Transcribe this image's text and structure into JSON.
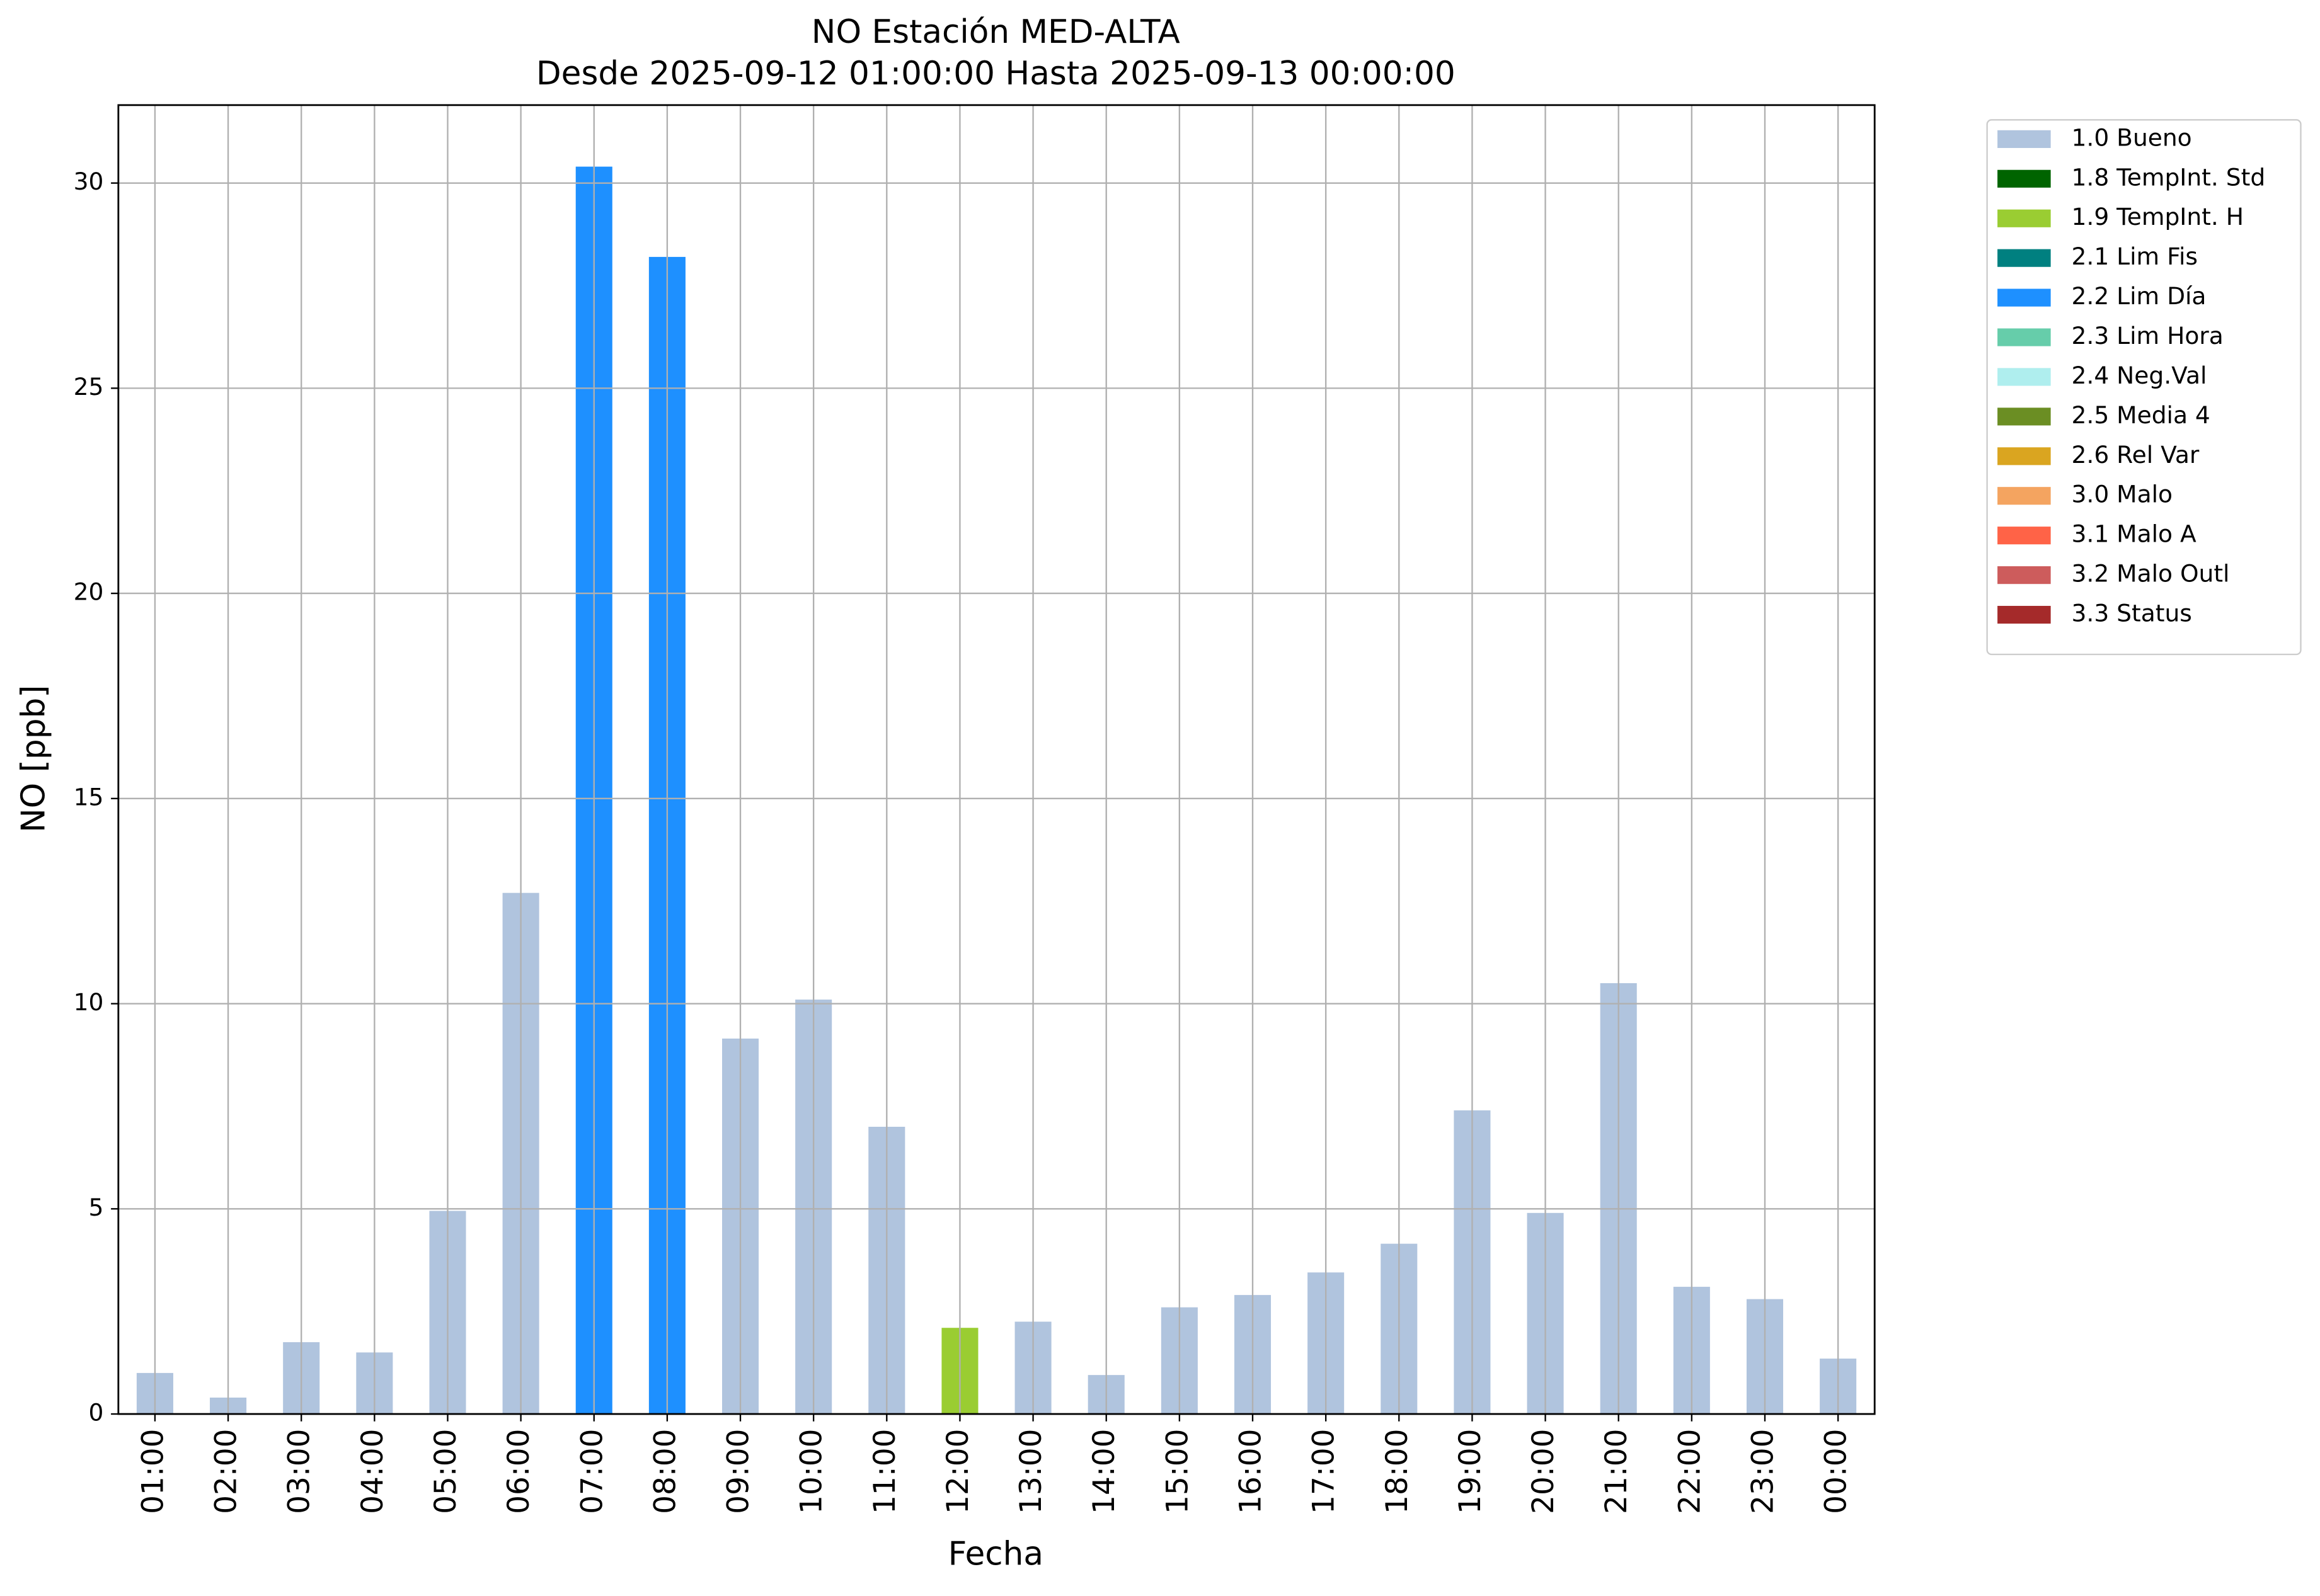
{
  "chart_data": {
    "type": "bar",
    "stacked": true,
    "title": "NO Estación MED-ALTA",
    "subtitle": "Desde 2025-09-12 01:00:00 Hasta 2025-09-13 00:00:00",
    "x_label": "Fecha",
    "y_label": "NO [ppb]",
    "categories": [
      "01:00",
      "02:00",
      "03:00",
      "04:00",
      "05:00",
      "06:00",
      "07:00",
      "08:00",
      "09:00",
      "10:00",
      "11:00",
      "12:00",
      "13:00",
      "14:00",
      "15:00",
      "16:00",
      "17:00",
      "18:00",
      "19:00",
      "20:00",
      "21:00",
      "22:00",
      "23:00",
      "00:00"
    ],
    "ylim": [
      0,
      31.9
    ],
    "yticks": [
      0,
      5,
      10,
      15,
      20,
      25,
      30
    ],
    "grid": true,
    "legend": "outside-upper-right",
    "series": [
      {
        "name": "1.0 Bueno",
        "color": "#b0c4de",
        "values": [
          1.0,
          0.4,
          1.75,
          1.5,
          4.95,
          12.7,
          null,
          null,
          9.15,
          10.1,
          7.0,
          null,
          2.25,
          0.95,
          2.6,
          2.9,
          3.45,
          4.15,
          7.4,
          4.9,
          10.5,
          3.1,
          2.8,
          1.35
        ]
      },
      {
        "name": "1.8 TempInt. Std",
        "color": "#006400",
        "values": [
          null,
          null,
          null,
          null,
          null,
          null,
          null,
          null,
          null,
          null,
          null,
          null,
          null,
          null,
          null,
          null,
          null,
          null,
          null,
          null,
          null,
          null,
          null,
          null
        ]
      },
      {
        "name": "1.9 TempInt. H",
        "color": "#9acd32",
        "values": [
          null,
          null,
          null,
          null,
          null,
          null,
          null,
          null,
          null,
          null,
          null,
          2.1,
          null,
          null,
          null,
          null,
          null,
          null,
          null,
          null,
          null,
          null,
          null,
          null
        ]
      },
      {
        "name": "2.1 Lim Fis",
        "color": "#008080",
        "values": [
          null,
          null,
          null,
          null,
          null,
          null,
          null,
          null,
          null,
          null,
          null,
          null,
          null,
          null,
          null,
          null,
          null,
          null,
          null,
          null,
          null,
          null,
          null,
          null
        ]
      },
      {
        "name": "2.2 Lim Día",
        "color": "#1e90ff",
        "values": [
          null,
          null,
          null,
          null,
          null,
          null,
          30.4,
          28.2,
          null,
          null,
          null,
          null,
          null,
          null,
          null,
          null,
          null,
          null,
          null,
          null,
          null,
          null,
          null,
          null
        ]
      },
      {
        "name": "2.3 Lim Hora",
        "color": "#66cdaa",
        "values": [
          null,
          null,
          null,
          null,
          null,
          null,
          null,
          null,
          null,
          null,
          null,
          null,
          null,
          null,
          null,
          null,
          null,
          null,
          null,
          null,
          null,
          null,
          null,
          null
        ]
      },
      {
        "name": "2.4 Neg.Val",
        "color": "#afeeee",
        "values": [
          null,
          null,
          null,
          null,
          null,
          null,
          null,
          null,
          null,
          null,
          null,
          null,
          null,
          null,
          null,
          null,
          null,
          null,
          null,
          null,
          null,
          null,
          null,
          null
        ]
      },
      {
        "name": "2.5 Media 4",
        "color": "#6b8e23",
        "values": [
          null,
          null,
          null,
          null,
          null,
          null,
          null,
          null,
          null,
          null,
          null,
          null,
          null,
          null,
          null,
          null,
          null,
          null,
          null,
          null,
          null,
          null,
          null,
          null
        ]
      },
      {
        "name": "2.6 Rel Var",
        "color": "#daa520",
        "values": [
          null,
          null,
          null,
          null,
          null,
          null,
          null,
          null,
          null,
          null,
          null,
          null,
          null,
          null,
          null,
          null,
          null,
          null,
          null,
          null,
          null,
          null,
          null,
          null
        ]
      },
      {
        "name": "3.0 Malo",
        "color": "#f4a460",
        "values": [
          null,
          null,
          null,
          null,
          null,
          null,
          null,
          null,
          null,
          null,
          null,
          null,
          null,
          null,
          null,
          null,
          null,
          null,
          null,
          null,
          null,
          null,
          null,
          null
        ]
      },
      {
        "name": "3.1 Malo A",
        "color": "#ff6347",
        "values": [
          null,
          null,
          null,
          null,
          null,
          null,
          null,
          null,
          null,
          null,
          null,
          null,
          null,
          null,
          null,
          null,
          null,
          null,
          null,
          null,
          null,
          null,
          null,
          null
        ]
      },
      {
        "name": "3.2 Malo Outl",
        "color": "#cd5c5c",
        "values": [
          null,
          null,
          null,
          null,
          null,
          null,
          null,
          null,
          null,
          null,
          null,
          null,
          null,
          null,
          null,
          null,
          null,
          null,
          null,
          null,
          null,
          null,
          null,
          null
        ]
      },
      {
        "name": "3.3 Status",
        "color": "#a52a2a",
        "values": [
          null,
          null,
          null,
          null,
          null,
          null,
          null,
          null,
          null,
          null,
          null,
          null,
          null,
          null,
          null,
          null,
          null,
          null,
          null,
          null,
          null,
          null,
          null,
          null
        ]
      }
    ]
  }
}
